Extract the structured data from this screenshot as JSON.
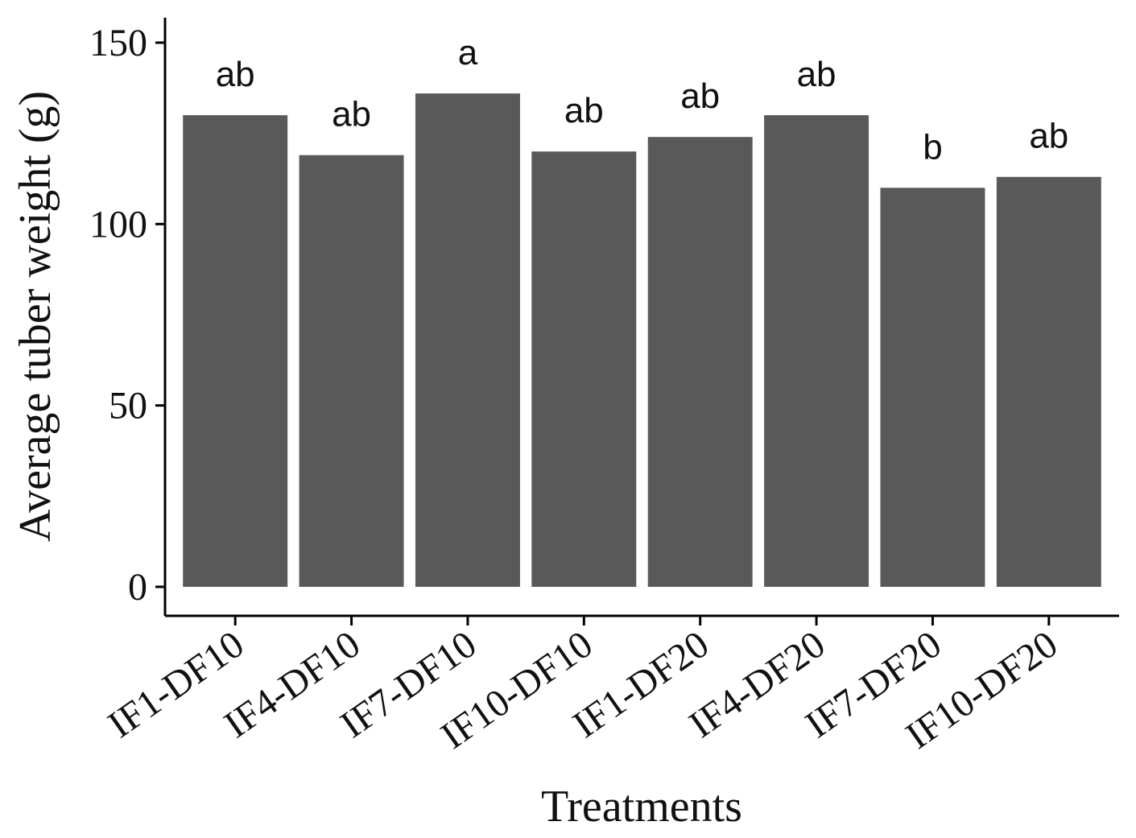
{
  "chart_data": {
    "type": "bar",
    "title": "",
    "xlabel": "Treatments",
    "ylabel": "Average tuber weight (g)",
    "ylim": [
      0,
      150
    ],
    "yticks": [
      "0",
      "50",
      "100",
      "150"
    ],
    "grid": false,
    "legend": "none",
    "bar_color": "#595959",
    "categories": [
      "IF1-DF10",
      "IF4-DF10",
      "IF7-DF10",
      "IF10-DF10",
      "IF1-DF20",
      "IF4-DF20",
      "IF7-DF20",
      "IF10-DF20"
    ],
    "values": [
      130,
      119,
      136,
      120,
      124,
      130,
      110,
      113
    ],
    "letters": [
      "ab",
      "ab",
      "a",
      "ab",
      "ab",
      "ab",
      "b",
      "ab"
    ]
  }
}
